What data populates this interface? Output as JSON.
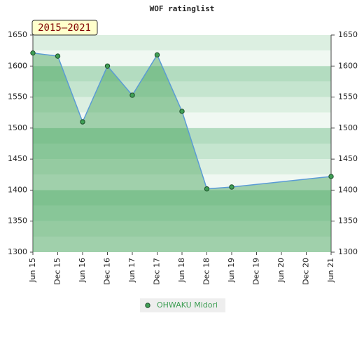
{
  "chart_data": {
    "type": "area-line",
    "title": "WOF ratinglist",
    "badge": "2015–2021",
    "x": [
      0,
      1,
      2,
      3,
      4,
      5,
      6,
      7,
      8,
      12
    ],
    "xlim": [
      0,
      12
    ],
    "xticks": [
      {
        "value": 0,
        "label": "Jun 15"
      },
      {
        "value": 1,
        "label": "Dec 15"
      },
      {
        "value": 2,
        "label": "Jun 16"
      },
      {
        "value": 3,
        "label": "Dec 16"
      },
      {
        "value": 4,
        "label": "Jun 17"
      },
      {
        "value": 5,
        "label": "Dec 17"
      },
      {
        "value": 6,
        "label": "Jun 18"
      },
      {
        "value": 7,
        "label": "Dec 18"
      },
      {
        "value": 8,
        "label": "Jun 19"
      },
      {
        "value": 9,
        "label": "Dec 19"
      },
      {
        "value": 10,
        "label": "Jun 20"
      },
      {
        "value": 11,
        "label": "Dec 20"
      },
      {
        "value": 12,
        "label": "Jun 21"
      }
    ],
    "series": [
      {
        "name": "OHWAKU Midori",
        "color": "#3f9f55",
        "values": [
          1621,
          1616,
          1510,
          1600,
          1553,
          1618,
          1527,
          1402,
          1405,
          1422
        ]
      }
    ],
    "ylim": [
      1300,
      1650
    ],
    "yticks": [
      1300,
      1350,
      1400,
      1450,
      1500,
      1550,
      1600,
      1650
    ],
    "grid": true
  }
}
